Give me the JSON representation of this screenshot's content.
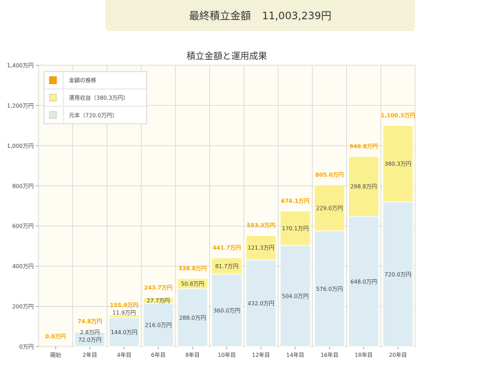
{
  "result": {
    "label": "最終積立金額",
    "value": "11,003,239円"
  },
  "chart_data": {
    "type": "bar",
    "stacked": true,
    "title": "積立金額と運用成果",
    "categories": [
      "開始",
      "2年目",
      "4年目",
      "6年目",
      "8年目",
      "10年目",
      "12年目",
      "14年目",
      "16年目",
      "18年目",
      "20年目"
    ],
    "series": [
      {
        "name": "元本（720.0万円）",
        "color": "#dcecf2",
        "values": [
          0,
          72.0,
          144.0,
          216.0,
          288.0,
          360.0,
          432.0,
          504.0,
          576.0,
          648.0,
          720.0
        ],
        "labels": [
          "",
          "72.0万円",
          "144.0万円",
          "216.0万円",
          "288.0万円",
          "360.0万円",
          "432.0万円",
          "504.0万円",
          "576.0万円",
          "648.0万円",
          "720.0万円"
        ]
      },
      {
        "name": "運用収益（380.3万円）",
        "color": "#fbf08f",
        "values": [
          0,
          2.8,
          11.9,
          27.7,
          50.8,
          81.7,
          121.3,
          170.1,
          229.0,
          298.8,
          380.3
        ],
        "labels": [
          "",
          "2.8万円",
          "11.9万円",
          "27.7万円",
          "50.8万円",
          "81.7万円",
          "121.3万円",
          "170.1万円",
          "229.0万円",
          "298.8万円",
          "380.3万円"
        ]
      }
    ],
    "totals": {
      "name": "金額の推移",
      "color": "#f5a300",
      "labels": [
        "0.0万円",
        "74.8万円",
        "155.9万円",
        "243.7万円",
        "338.8万円",
        "441.7万円",
        "553.3万円",
        "674.1万円",
        "805.0万円",
        "946.8万円",
        "1,100.3万円"
      ]
    },
    "yticks": [
      0,
      200,
      400,
      600,
      800,
      1000,
      1200,
      1400
    ],
    "ytick_labels": [
      "0万円",
      "200万円",
      "400万円",
      "600万円",
      "800万円",
      "1,000万円",
      "1,200万円",
      "1,400万円"
    ],
    "ylim": [
      0,
      1400
    ],
    "legend": [
      "金額の推移",
      "運用収益（380.3万円）",
      "元本（720.0万円）"
    ],
    "legend_position": "top-left"
  }
}
